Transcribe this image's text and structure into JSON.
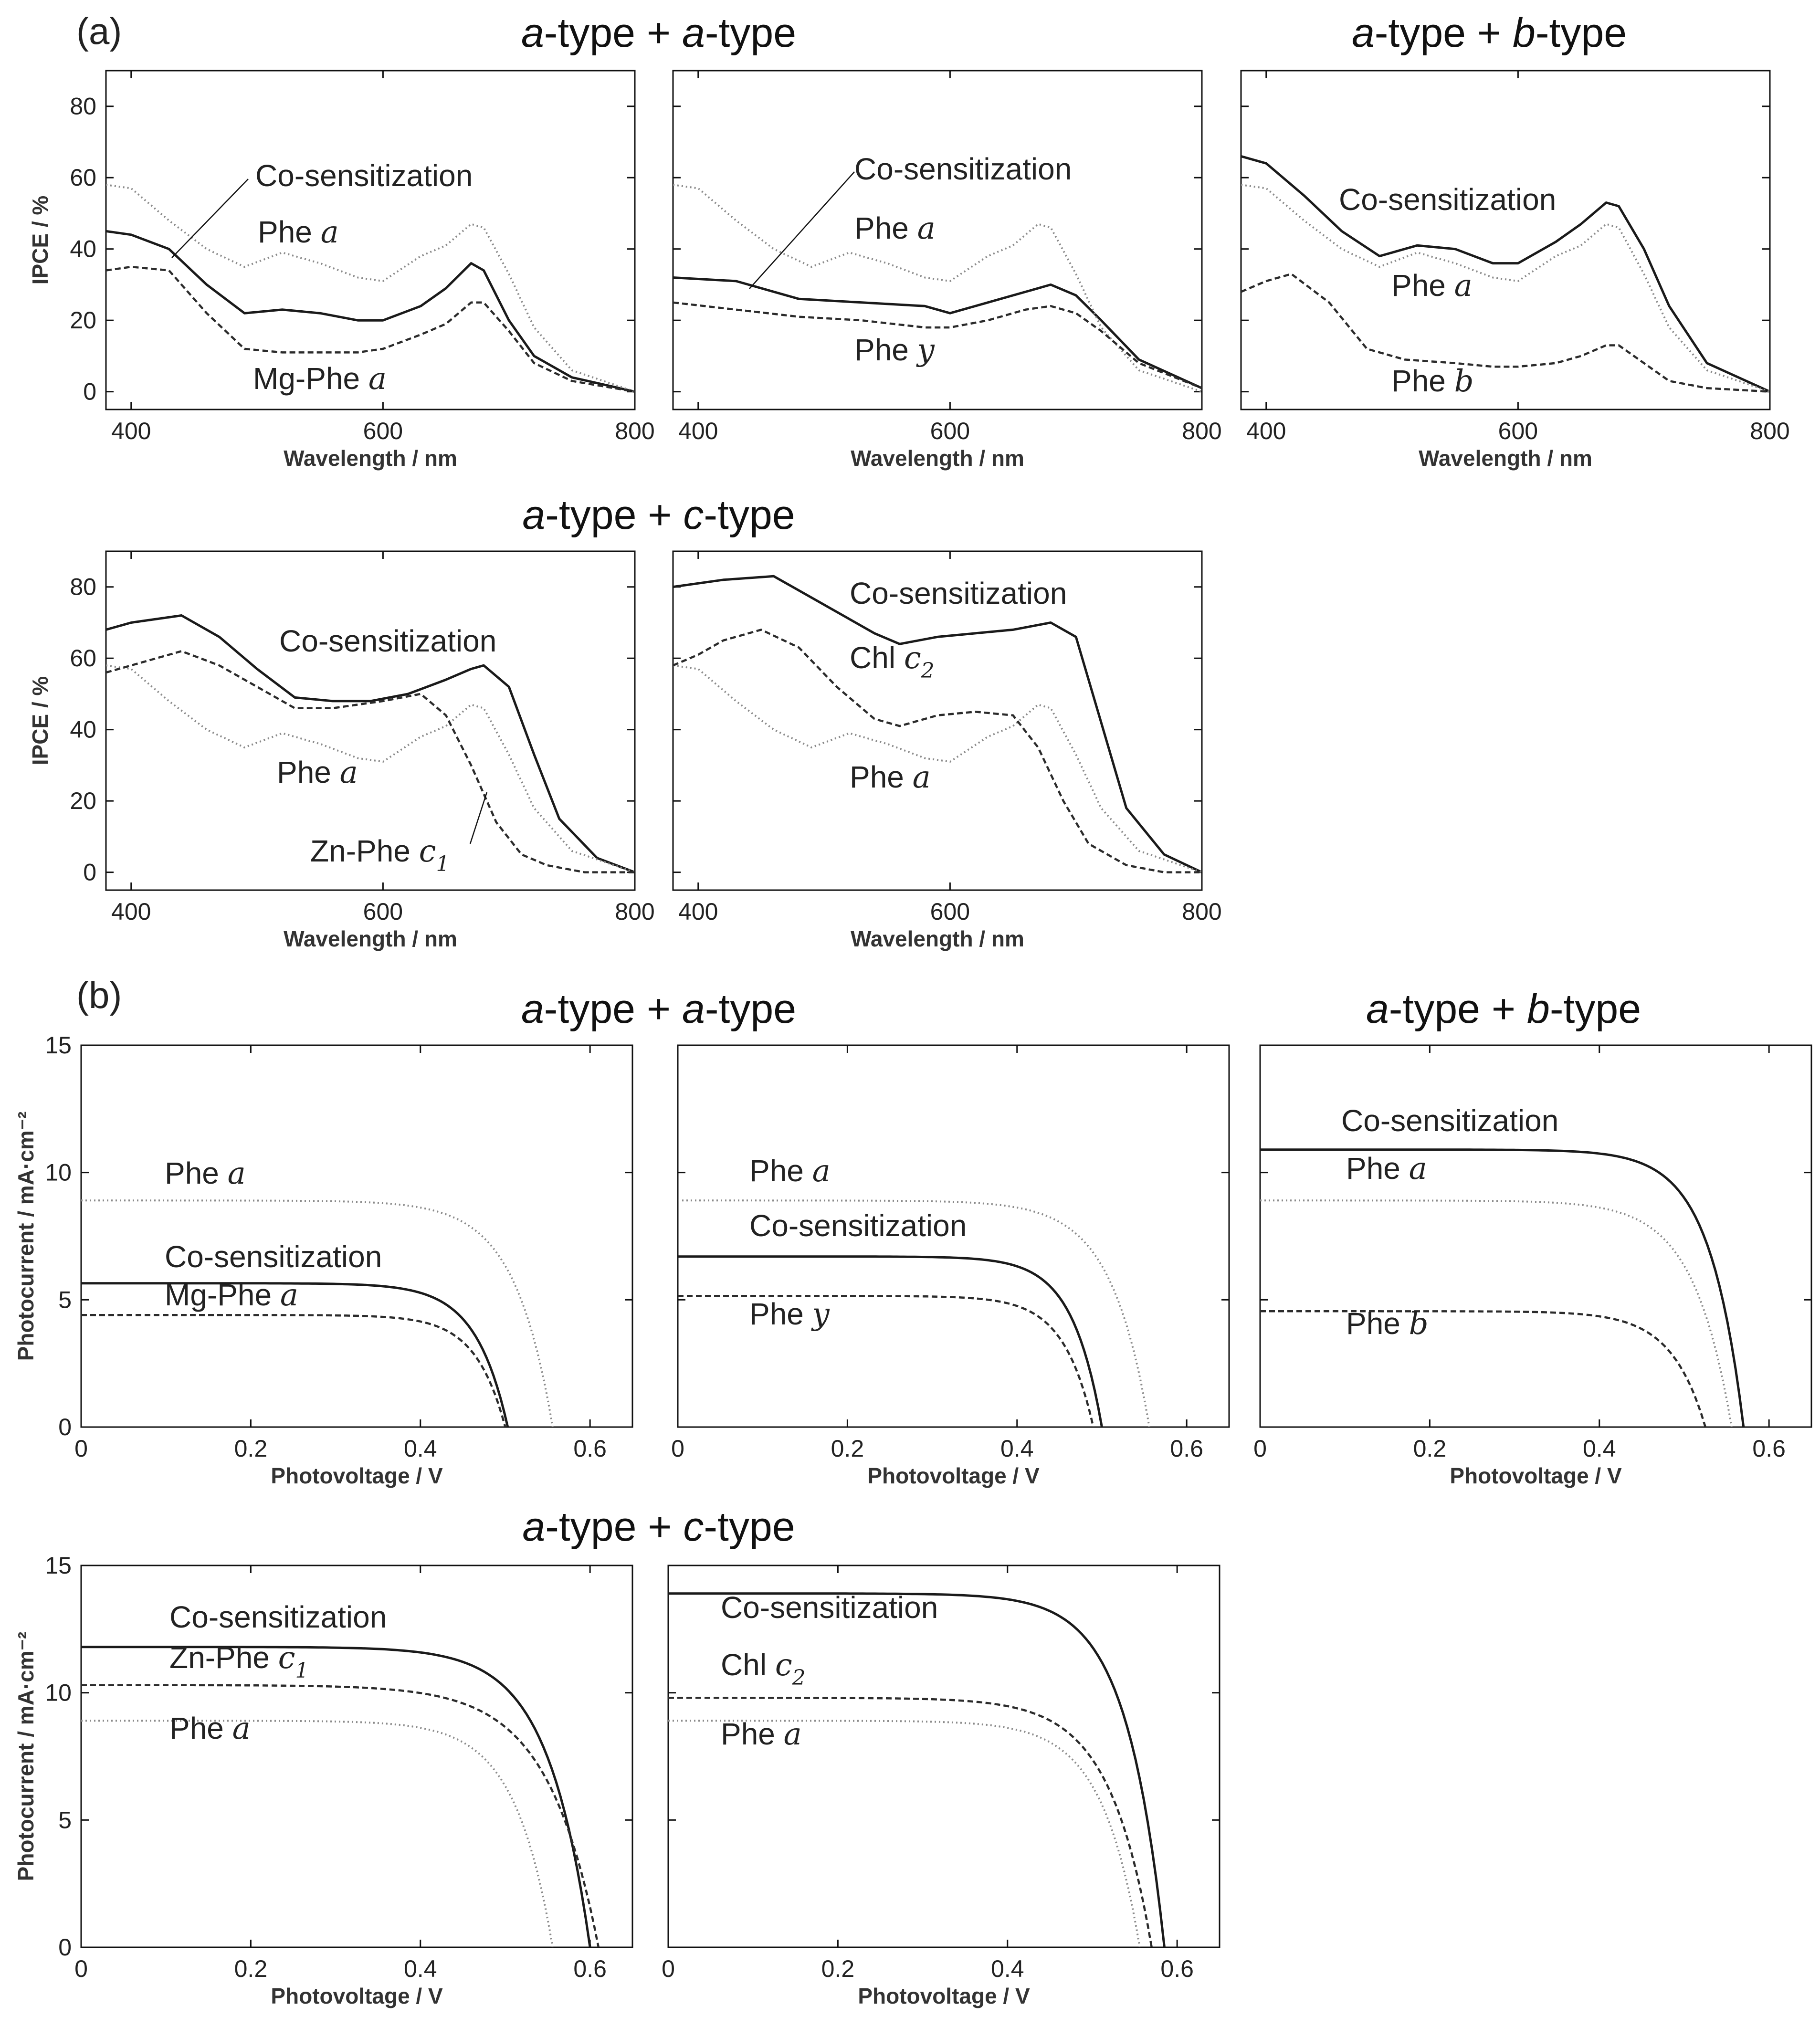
{
  "panel_labels": [
    "(a)",
    "(b)"
  ],
  "group_titles": {
    "a_row1_left": {
      "p1": "a",
      "t1": "-type + ",
      "p2": "a",
      "t2": "-type"
    },
    "a_row1_right": {
      "p1": "a",
      "t1": "-type + ",
      "p2": "b",
      "t2": "-type"
    },
    "a_row2": {
      "p1": "a",
      "t1": "-type + ",
      "p2": "c",
      "t2": "-type"
    },
    "b_row1_left": {
      "p1": "a",
      "t1": "-type + ",
      "p2": "a",
      "t2": "-type"
    },
    "b_row1_right": {
      "p1": "a",
      "t1": "-type + ",
      "p2": "b",
      "t2": "-type"
    },
    "b_row2": {
      "p1": "a",
      "t1": "-type + ",
      "p2": "c",
      "t2": "-type"
    }
  },
  "colors": {
    "axis": "#111111",
    "cosens": "#1a1a1a",
    "phe_a": "#8a8a8a",
    "partner": "#2b2b2b"
  },
  "chart_data": [
    {
      "id": "a1",
      "type": "line",
      "xlabel": "Wavelength / nm",
      "ylabel": "IPCE / %",
      "xlim": [
        380,
        800
      ],
      "ylim": [
        -5,
        90
      ],
      "xticks": [
        400,
        600,
        800
      ],
      "yticks": [
        0,
        20,
        40,
        60,
        80
      ],
      "series": [
        {
          "name": "Co-sensitization",
          "style": "solid",
          "x": [
            380,
            400,
            430,
            460,
            490,
            520,
            550,
            580,
            600,
            630,
            650,
            670,
            680,
            700,
            720,
            750,
            800
          ],
          "y": [
            45,
            44,
            40,
            30,
            22,
            23,
            22,
            20,
            20,
            24,
            29,
            36,
            34,
            20,
            10,
            4,
            0
          ]
        },
        {
          "name": "Phe a",
          "style": "dotted",
          "x": [
            380,
            400,
            430,
            460,
            490,
            520,
            550,
            580,
            600,
            630,
            650,
            670,
            680,
            700,
            720,
            750,
            800
          ],
          "y": [
            58,
            57,
            48,
            40,
            35,
            39,
            36,
            32,
            31,
            38,
            41,
            47,
            46,
            33,
            18,
            6,
            0
          ]
        },
        {
          "name": "Mg-Phe a",
          "style": "dashed",
          "x": [
            380,
            400,
            430,
            460,
            490,
            520,
            550,
            580,
            600,
            630,
            650,
            670,
            680,
            700,
            720,
            750,
            800
          ],
          "y": [
            34,
            35,
            34,
            22,
            12,
            11,
            11,
            11,
            12,
            16,
            19,
            25,
            25,
            17,
            8,
            3,
            0
          ]
        }
      ],
      "labels": [
        {
          "text": "Co-sensitization"
        },
        {
          "text": "Phe ",
          "it": "a"
        },
        {
          "text": "Mg-Phe ",
          "it": "a"
        }
      ]
    },
    {
      "id": "a2",
      "type": "line",
      "xlabel": "Wavelength / nm",
      "ylabel": "",
      "xlim": [
        380,
        800
      ],
      "ylim": [
        -5,
        90
      ],
      "xticks": [
        400,
        600,
        800
      ],
      "yticks": [],
      "series": [
        {
          "name": "Co-sensitization",
          "style": "solid",
          "x": [
            380,
            430,
            480,
            530,
            580,
            600,
            630,
            660,
            680,
            700,
            720,
            750,
            800
          ],
          "y": [
            32,
            31,
            26,
            25,
            24,
            22,
            25,
            28,
            30,
            27,
            20,
            9,
            1
          ]
        },
        {
          "name": "Phe a",
          "style": "dotted",
          "x": [
            380,
            400,
            430,
            460,
            490,
            520,
            550,
            580,
            600,
            630,
            650,
            670,
            680,
            700,
            720,
            750,
            800
          ],
          "y": [
            58,
            57,
            48,
            40,
            35,
            39,
            36,
            32,
            31,
            38,
            41,
            47,
            46,
            33,
            18,
            6,
            0
          ]
        },
        {
          "name": "Phe y",
          "style": "dashed",
          "x": [
            380,
            430,
            480,
            530,
            580,
            600,
            630,
            660,
            680,
            700,
            720,
            750,
            800
          ],
          "y": [
            25,
            23,
            21,
            20,
            18,
            18,
            20,
            23,
            24,
            22,
            17,
            8,
            1
          ]
        }
      ],
      "labels": [
        {
          "text": "Co-sensitization"
        },
        {
          "text": "Phe ",
          "it": "a"
        },
        {
          "text": "Phe ",
          "it": "y"
        }
      ]
    },
    {
      "id": "a3",
      "type": "line",
      "xlabel": "Wavelength / nm",
      "ylabel": "",
      "xlim": [
        380,
        800
      ],
      "ylim": [
        -5,
        90
      ],
      "xticks": [
        400,
        600,
        800
      ],
      "yticks": [],
      "series": [
        {
          "name": "Co-sensitization",
          "style": "solid",
          "x": [
            380,
            400,
            430,
            460,
            490,
            520,
            550,
            580,
            600,
            630,
            650,
            670,
            680,
            700,
            720,
            750,
            800
          ],
          "y": [
            66,
            64,
            55,
            45,
            38,
            41,
            40,
            36,
            36,
            42,
            47,
            53,
            52,
            40,
            24,
            8,
            0
          ]
        },
        {
          "name": "Phe a",
          "style": "dotted",
          "x": [
            380,
            400,
            430,
            460,
            490,
            520,
            550,
            580,
            600,
            630,
            650,
            670,
            680,
            700,
            720,
            750,
            800
          ],
          "y": [
            58,
            57,
            48,
            40,
            35,
            39,
            36,
            32,
            31,
            38,
            41,
            47,
            46,
            33,
            18,
            6,
            0
          ]
        },
        {
          "name": "Phe b",
          "style": "dashed",
          "x": [
            380,
            400,
            420,
            450,
            480,
            510,
            550,
            580,
            600,
            630,
            650,
            670,
            680,
            700,
            720,
            750,
            800
          ],
          "y": [
            28,
            31,
            33,
            25,
            12,
            9,
            8,
            7,
            7,
            8,
            10,
            13,
            13,
            8,
            3,
            1,
            0
          ]
        }
      ],
      "labels": [
        {
          "text": "Co-sensitization"
        },
        {
          "text": "Phe ",
          "it": "a"
        },
        {
          "text": "Phe ",
          "it": "b"
        }
      ]
    },
    {
      "id": "a4",
      "type": "line",
      "xlabel": "Wavelength / nm",
      "ylabel": "IPCE / %",
      "xlim": [
        380,
        800
      ],
      "ylim": [
        -5,
        90
      ],
      "xticks": [
        400,
        600,
        800
      ],
      "yticks": [
        0,
        20,
        40,
        60,
        80
      ],
      "series": [
        {
          "name": "Co-sensitization",
          "style": "solid",
          "x": [
            380,
            400,
            440,
            470,
            500,
            530,
            560,
            590,
            620,
            650,
            670,
            680,
            700,
            720,
            740,
            770,
            800
          ],
          "y": [
            68,
            70,
            72,
            66,
            57,
            49,
            48,
            48,
            50,
            54,
            57,
            58,
            52,
            33,
            15,
            4,
            0
          ]
        },
        {
          "name": "Phe a",
          "style": "dotted",
          "x": [
            380,
            400,
            430,
            460,
            490,
            520,
            550,
            580,
            600,
            630,
            650,
            670,
            680,
            700,
            720,
            750,
            800
          ],
          "y": [
            58,
            57,
            48,
            40,
            35,
            39,
            36,
            32,
            31,
            38,
            41,
            47,
            46,
            33,
            18,
            6,
            0
          ]
        },
        {
          "name": "Zn-Phe c1",
          "style": "dashed",
          "x": [
            380,
            400,
            440,
            470,
            500,
            530,
            560,
            600,
            630,
            650,
            670,
            690,
            710,
            730,
            760,
            800
          ],
          "y": [
            56,
            58,
            62,
            58,
            52,
            46,
            46,
            48,
            50,
            44,
            30,
            14,
            5,
            2,
            0,
            0
          ]
        }
      ],
      "labels": [
        {
          "text": "Co-sensitization"
        },
        {
          "text": "Phe ",
          "it": "a"
        },
        {
          "text": "Zn-Phe ",
          "it": "c",
          "sub": "1"
        }
      ]
    },
    {
      "id": "a5",
      "type": "line",
      "xlabel": "Wavelength / nm",
      "ylabel": "",
      "xlim": [
        380,
        800
      ],
      "ylim": [
        -5,
        90
      ],
      "xticks": [
        400,
        600,
        800
      ],
      "yticks": [],
      "series": [
        {
          "name": "Co-sensitization",
          "style": "solid",
          "x": [
            380,
            420,
            460,
            500,
            540,
            560,
            590,
            620,
            650,
            680,
            700,
            720,
            740,
            770,
            800
          ],
          "y": [
            80,
            82,
            83,
            75,
            67,
            64,
            66,
            67,
            68,
            70,
            66,
            42,
            18,
            5,
            0
          ]
        },
        {
          "name": "Phe a",
          "style": "dotted",
          "x": [
            380,
            400,
            430,
            460,
            490,
            520,
            550,
            580,
            600,
            630,
            650,
            670,
            680,
            700,
            720,
            750,
            800
          ],
          "y": [
            58,
            57,
            48,
            40,
            35,
            39,
            36,
            32,
            31,
            38,
            41,
            47,
            46,
            33,
            18,
            6,
            0
          ]
        },
        {
          "name": "Chl c2",
          "style": "dashed",
          "x": [
            380,
            400,
            420,
            450,
            480,
            510,
            540,
            560,
            590,
            620,
            650,
            670,
            690,
            710,
            740,
            770,
            800
          ],
          "y": [
            58,
            61,
            65,
            68,
            63,
            52,
            43,
            41,
            44,
            45,
            44,
            35,
            20,
            8,
            2,
            0,
            0
          ]
        }
      ],
      "labels": [
        {
          "text": "Co-sensitization"
        },
        {
          "text": "Chl ",
          "it": "c",
          "sub": "2"
        },
        {
          "text": "Phe ",
          "it": "a"
        }
      ]
    },
    {
      "id": "b1",
      "type": "line",
      "xlabel": "Photovoltage / V",
      "ylabel": "Photocurrent / mA·cm⁻²",
      "xlim": [
        0,
        0.65
      ],
      "ylim": [
        0,
        15
      ],
      "xticks": [
        0,
        0.2,
        0.4,
        0.6
      ],
      "xtick_labels": [
        "0",
        "0.2",
        "0.4",
        "0.6"
      ],
      "yticks": [
        0,
        5,
        10,
        15
      ],
      "series": [
        {
          "name": "Phe a",
          "style": "dotted",
          "jsc": 8.9,
          "voc": 0.556,
          "n": 0.045
        },
        {
          "name": "Co-sensitization",
          "style": "solid",
          "jsc": 5.65,
          "voc": 0.503,
          "n": 0.038
        },
        {
          "name": "Mg-Phe a",
          "style": "dashed",
          "jsc": 4.4,
          "voc": 0.5,
          "n": 0.035
        }
      ],
      "labels": [
        {
          "text": "Phe ",
          "it": "a"
        },
        {
          "text": "Co-sensitization"
        },
        {
          "text": "Mg-Phe ",
          "it": "a"
        }
      ]
    },
    {
      "id": "b2",
      "type": "line",
      "xlabel": "Photovoltage / V",
      "ylabel": "",
      "xlim": [
        0,
        0.65
      ],
      "ylim": [
        0,
        15
      ],
      "xticks": [
        0,
        0.2,
        0.4,
        0.6
      ],
      "xtick_labels": [
        "0",
        "0.2",
        "0.4",
        "0.6"
      ],
      "yticks": [],
      "series": [
        {
          "name": "Phe a",
          "style": "dotted",
          "jsc": 8.9,
          "voc": 0.556,
          "n": 0.045
        },
        {
          "name": "Co-sensitization",
          "style": "solid",
          "jsc": 6.7,
          "voc": 0.5,
          "n": 0.035
        },
        {
          "name": "Phe y",
          "style": "dashed",
          "jsc": 5.15,
          "voc": 0.49,
          "n": 0.035
        }
      ],
      "labels": [
        {
          "text": "Phe ",
          "it": "a"
        },
        {
          "text": "Co-sensitization"
        },
        {
          "text": "Phe ",
          "it": "y"
        }
      ]
    },
    {
      "id": "b3",
      "type": "line",
      "xlabel": "Photovoltage / V",
      "ylabel": "",
      "xlim": [
        0,
        0.65
      ],
      "ylim": [
        0,
        15
      ],
      "xticks": [
        0,
        0.2,
        0.4,
        0.6
      ],
      "xtick_labels": [
        "0",
        "0.2",
        "0.4",
        "0.6"
      ],
      "yticks": [],
      "series": [
        {
          "name": "Co-sensitization",
          "style": "solid",
          "jsc": 10.9,
          "voc": 0.57,
          "n": 0.04
        },
        {
          "name": "Phe a",
          "style": "dotted",
          "jsc": 8.9,
          "voc": 0.556,
          "n": 0.045
        },
        {
          "name": "Phe b",
          "style": "dashed",
          "jsc": 4.55,
          "voc": 0.525,
          "n": 0.04
        }
      ],
      "labels": [
        {
          "text": "Co-sensitization"
        },
        {
          "text": "Phe ",
          "it": "a"
        },
        {
          "text": "Phe ",
          "it": "b"
        }
      ]
    },
    {
      "id": "b4",
      "type": "line",
      "xlabel": "Photovoltage / V",
      "ylabel": "Photocurrent / mA·cm⁻²",
      "xlim": [
        0,
        0.65
      ],
      "ylim": [
        0,
        15
      ],
      "xticks": [
        0,
        0.2,
        0.4,
        0.6
      ],
      "xtick_labels": [
        "0",
        "0.2",
        "0.4",
        "0.6"
      ],
      "yticks": [
        0,
        5,
        10,
        15
      ],
      "series": [
        {
          "name": "Co-sensitization",
          "style": "solid",
          "jsc": 11.8,
          "voc": 0.6,
          "n": 0.05
        },
        {
          "name": "Zn-Phe c1",
          "style": "dashed",
          "jsc": 10.3,
          "voc": 0.61,
          "n": 0.06
        },
        {
          "name": "Phe a",
          "style": "dotted",
          "jsc": 8.9,
          "voc": 0.556,
          "n": 0.045
        }
      ],
      "labels": [
        {
          "text": "Co-sensitization"
        },
        {
          "text": "Zn-Phe ",
          "it": "c",
          "sub": "1"
        },
        {
          "text": "Phe ",
          "it": "a"
        }
      ]
    },
    {
      "id": "b5",
      "type": "line",
      "xlabel": "Photovoltage / V",
      "ylabel": "",
      "xlim": [
        0,
        0.65
      ],
      "ylim": [
        0,
        15
      ],
      "xticks": [
        0,
        0.2,
        0.4,
        0.6
      ],
      "xtick_labels": [
        "0",
        "0.2",
        "0.4",
        "0.6"
      ],
      "yticks": [],
      "series": [
        {
          "name": "Co-sensitization",
          "style": "solid",
          "jsc": 13.9,
          "voc": 0.585,
          "n": 0.045
        },
        {
          "name": "Chl c2",
          "style": "dashed",
          "jsc": 9.8,
          "voc": 0.57,
          "n": 0.05
        },
        {
          "name": "Phe a",
          "style": "dotted",
          "jsc": 8.9,
          "voc": 0.556,
          "n": 0.045
        }
      ],
      "labels": [
        {
          "text": "Co-sensitization"
        },
        {
          "text": "Chl ",
          "it": "c",
          "sub": "2"
        },
        {
          "text": "Phe ",
          "it": "a"
        }
      ]
    }
  ]
}
